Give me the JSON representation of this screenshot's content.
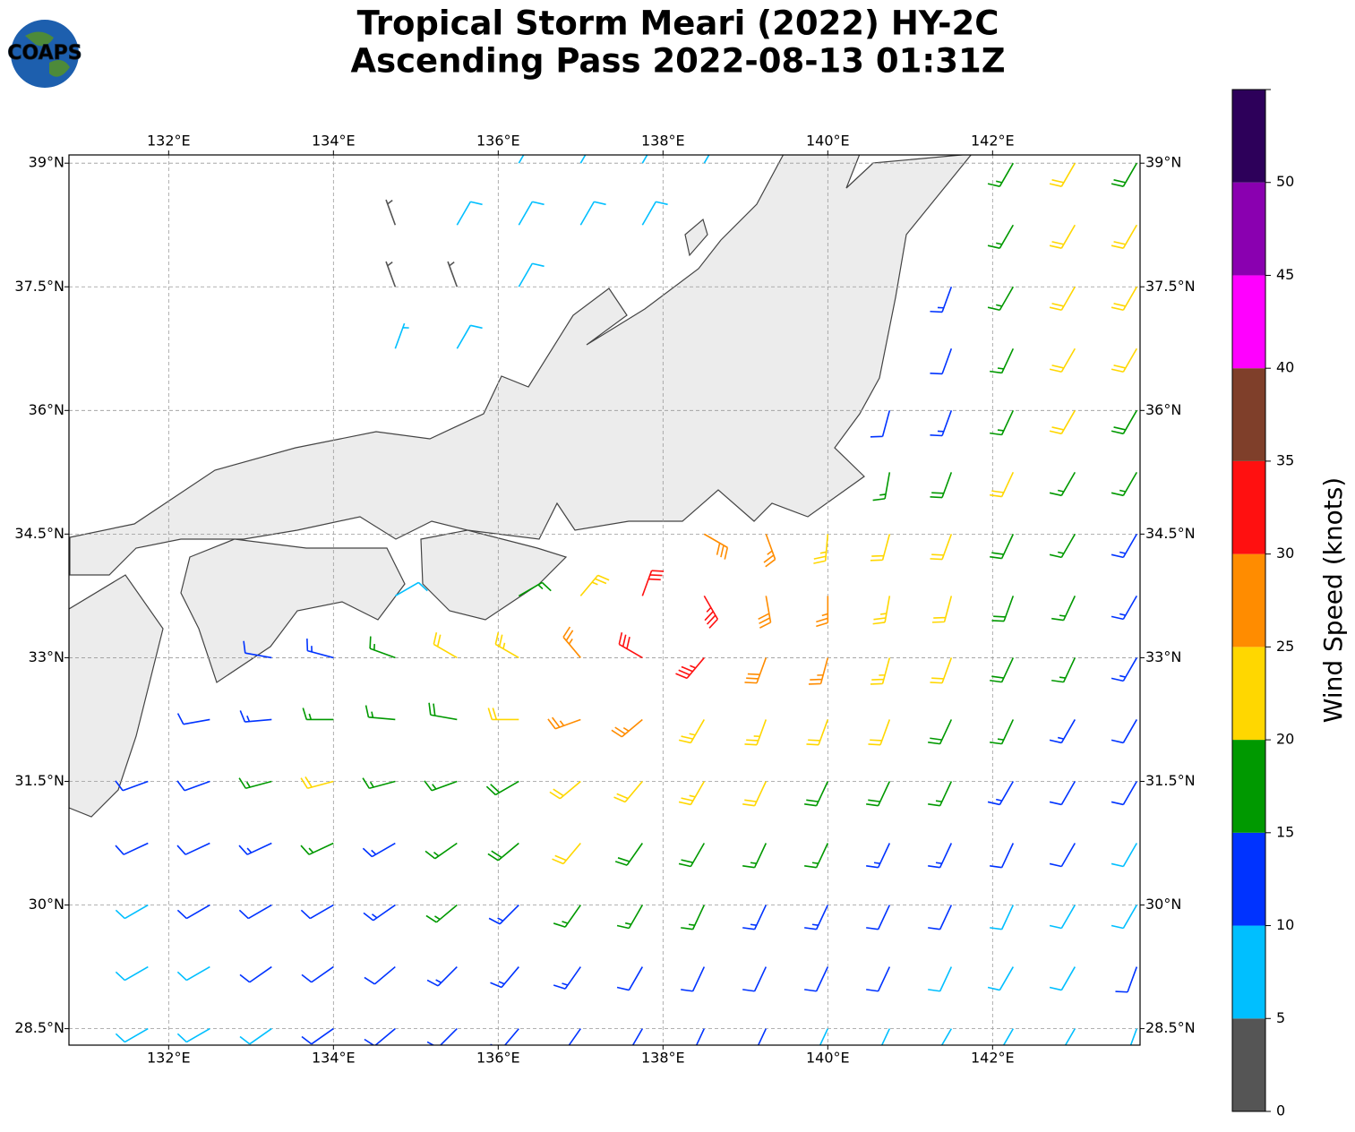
{
  "header": {
    "title_line1": "Tropical Storm Meari (2022) HY-2C",
    "title_line2": "Ascending Pass 2022-08-13 01:31Z",
    "logo": "COAPS"
  },
  "map": {
    "lon_range": [
      130.79,
      143.79
    ],
    "lat_range": [
      28.3,
      39.1
    ],
    "lon_ticks": [
      {
        "value": 132,
        "label": "132°E"
      },
      {
        "value": 134,
        "label": "134°E"
      },
      {
        "value": 136,
        "label": "136°E"
      },
      {
        "value": 138,
        "label": "138°E"
      },
      {
        "value": 140,
        "label": "140°E"
      },
      {
        "value": 142,
        "label": "142°E"
      }
    ],
    "lat_ticks": [
      {
        "value": 39,
        "label": "39°N"
      },
      {
        "value": 37.5,
        "label": "37.5°N"
      },
      {
        "value": 36,
        "label": "36°N"
      },
      {
        "value": 34.5,
        "label": "34.5°N"
      },
      {
        "value": 33,
        "label": "33°N"
      },
      {
        "value": 31.5,
        "label": "31.5°N"
      },
      {
        "value": 30,
        "label": "30°N"
      },
      {
        "value": 28.5,
        "label": "28.5°N"
      }
    ],
    "wind": {
      "lats": [
        39,
        38.25,
        37.5,
        36.75,
        36,
        35.25,
        34.5,
        33.75,
        33,
        32.25,
        31.5,
        30.75,
        30,
        29.25,
        28.5
      ],
      "lons": [
        131,
        131.75,
        132.5,
        133.25,
        134,
        134.75,
        135.5,
        136.25,
        137,
        137.75,
        138.5,
        139.25,
        140,
        140.75,
        141.5,
        142.25,
        143,
        143.75
      ],
      "speed": [
        [
          null,
          null,
          null,
          null,
          null,
          null,
          null,
          8,
          8,
          8,
          8,
          null,
          null,
          null,
          null,
          17,
          22,
          18
        ],
        [
          null,
          null,
          null,
          null,
          null,
          4,
          8,
          8,
          9,
          8,
          null,
          null,
          null,
          null,
          null,
          16,
          22,
          20
        ],
        [
          null,
          null,
          null,
          null,
          null,
          3,
          4,
          8,
          null,
          null,
          null,
          null,
          null,
          null,
          13,
          16,
          20,
          22
        ],
        [
          null,
          null,
          null,
          null,
          null,
          7,
          8,
          null,
          null,
          null,
          null,
          null,
          null,
          null,
          12,
          16,
          20,
          21
        ],
        [
          null,
          null,
          null,
          null,
          null,
          null,
          null,
          null,
          null,
          null,
          null,
          null,
          null,
          12,
          14,
          17,
          21,
          19
        ],
        [
          null,
          null,
          null,
          null,
          null,
          null,
          null,
          null,
          null,
          null,
          null,
          null,
          null,
          16,
          18,
          21,
          17,
          16
        ],
        [
          null,
          null,
          null,
          null,
          null,
          null,
          null,
          null,
          null,
          null,
          28,
          27,
          24,
          22,
          21,
          18,
          17,
          14
        ],
        [
          null,
          null,
          null,
          null,
          null,
          8,
          null,
          17,
          24,
          30,
          33,
          29,
          26,
          23,
          22,
          19,
          17,
          13
        ],
        [
          null,
          null,
          null,
          12,
          13,
          16,
          21,
          23,
          27,
          32,
          33,
          28,
          25,
          23,
          21,
          19,
          16,
          13
        ],
        [
          null,
          null,
          12,
          13,
          16,
          17,
          19,
          22,
          26,
          27,
          24,
          23,
          21,
          20,
          18,
          16,
          14,
          12
        ],
        [
          null,
          11,
          12,
          16,
          21,
          17,
          16,
          18,
          21,
          22,
          23,
          20,
          19,
          18,
          16,
          14,
          12,
          11
        ],
        [
          null,
          11,
          12,
          14,
          15,
          14,
          16,
          18,
          21,
          19,
          18,
          17,
          16,
          14,
          13,
          12,
          11,
          9
        ],
        [
          null,
          9,
          11,
          12,
          12,
          13,
          16,
          14,
          16,
          16,
          15,
          14,
          13,
          12,
          11,
          9,
          8,
          8
        ],
        [
          null,
          8,
          9,
          11,
          12,
          12,
          13,
          13,
          13,
          12,
          12,
          11,
          11,
          10,
          9,
          8,
          8,
          11
        ],
        [
          null,
          8,
          8,
          9,
          11,
          11,
          12,
          12,
          12,
          11,
          11,
          11,
          9,
          8,
          8,
          9,
          8,
          7
        ]
      ],
      "direction": [
        [
          null,
          null,
          null,
          null,
          null,
          null,
          null,
          30,
          30,
          30,
          30,
          null,
          null,
          null,
          null,
          210,
          210,
          210
        ],
        [
          null,
          null,
          null,
          null,
          null,
          340,
          30,
          30,
          30,
          30,
          null,
          null,
          null,
          null,
          null,
          210,
          210,
          210
        ],
        [
          null,
          null,
          null,
          null,
          null,
          340,
          340,
          30,
          null,
          null,
          null,
          null,
          null,
          null,
          200,
          210,
          210,
          210
        ],
        [
          null,
          null,
          null,
          null,
          null,
          20,
          30,
          null,
          null,
          null,
          null,
          null,
          null,
          null,
          200,
          205,
          210,
          210
        ],
        [
          null,
          null,
          null,
          null,
          null,
          null,
          null,
          null,
          null,
          null,
          null,
          null,
          null,
          195,
          200,
          205,
          210,
          210
        ],
        [
          null,
          null,
          null,
          null,
          null,
          null,
          null,
          null,
          null,
          null,
          null,
          null,
          null,
          190,
          200,
          205,
          210,
          210
        ],
        [
          null,
          null,
          null,
          null,
          null,
          null,
          null,
          null,
          null,
          null,
          120,
          160,
          185,
          195,
          200,
          205,
          210,
          210
        ],
        [
          null,
          null,
          null,
          null,
          null,
          60,
          null,
          60,
          40,
          20,
          150,
          170,
          180,
          190,
          195,
          200,
          205,
          210
        ],
        [
          null,
          null,
          null,
          280,
          285,
          290,
          300,
          300,
          320,
          300,
          220,
          200,
          195,
          195,
          200,
          205,
          205,
          210
        ],
        [
          null,
          null,
          260,
          265,
          270,
          275,
          280,
          270,
          250,
          230,
          210,
          200,
          200,
          200,
          205,
          205,
          210,
          210
        ],
        [
          null,
          250,
          250,
          255,
          255,
          255,
          250,
          240,
          230,
          220,
          210,
          205,
          205,
          205,
          205,
          210,
          210,
          210
        ],
        [
          null,
          245,
          245,
          245,
          245,
          240,
          235,
          230,
          220,
          215,
          210,
          205,
          205,
          205,
          205,
          205,
          210,
          210
        ],
        [
          null,
          240,
          240,
          240,
          240,
          235,
          230,
          225,
          215,
          210,
          205,
          205,
          205,
          205,
          205,
          205,
          210,
          210
        ],
        [
          null,
          240,
          240,
          235,
          235,
          230,
          225,
          220,
          215,
          210,
          205,
          205,
          205,
          205,
          205,
          210,
          210,
          200
        ],
        [
          null,
          240,
          240,
          235,
          235,
          230,
          225,
          220,
          215,
          210,
          205,
          205,
          205,
          205,
          210,
          210,
          210,
          200
        ]
      ]
    }
  },
  "colorbar": {
    "label": "Wind Speed (knots)",
    "bounds": [
      0,
      5,
      10,
      15,
      20,
      25,
      30,
      35,
      40,
      45,
      50,
      55
    ],
    "colors": [
      "#555555",
      "#00bfff",
      "#0033ff",
      "#009900",
      "#ffd700",
      "#ff8c00",
      "#ff1010",
      "#7f3f2a",
      "#ff00ff",
      "#8a00b0",
      "#2d005a"
    ],
    "ticks": [
      0,
      5,
      10,
      15,
      20,
      25,
      30,
      35,
      40,
      45,
      50
    ]
  }
}
